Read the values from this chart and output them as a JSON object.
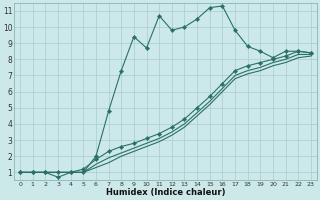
{
  "xlabel": "Humidex (Indice chaleur)",
  "bg_color": "#cce8e8",
  "grid_color": "#a8cccc",
  "line_color": "#2a7068",
  "xlim": [
    -0.5,
    23.5
  ],
  "ylim": [
    0.5,
    11.5
  ],
  "xticks": [
    0,
    1,
    2,
    3,
    4,
    5,
    6,
    7,
    8,
    9,
    10,
    11,
    12,
    13,
    14,
    15,
    16,
    17,
    18,
    19,
    20,
    21,
    22,
    23
  ],
  "yticks": [
    1,
    2,
    3,
    4,
    5,
    6,
    7,
    8,
    9,
    10,
    11
  ],
  "line1_x": [
    0,
    1,
    2,
    3,
    4,
    5,
    6,
    7,
    8,
    9,
    10,
    11,
    12,
    13,
    14,
    15,
    16,
    17,
    18,
    19,
    20,
    21,
    22,
    23
  ],
  "line1_y": [
    1,
    1,
    1,
    0.7,
    1,
    1,
    2,
    4.8,
    7.3,
    9.4,
    8.7,
    10.7,
    9.8,
    10.0,
    10.5,
    11.2,
    11.3,
    9.8,
    8.8,
    8.5,
    8.1,
    8.5,
    8.5,
    8.4
  ],
  "line2_x": [
    0,
    1,
    2,
    3,
    4,
    5,
    6,
    7,
    8,
    9,
    10,
    11,
    12,
    13,
    14,
    15,
    16,
    17,
    18,
    19,
    20,
    21,
    22,
    23
  ],
  "line2_y": [
    1,
    1,
    1,
    1,
    1,
    1.2,
    1.8,
    2.3,
    2.6,
    2.8,
    3.1,
    3.4,
    3.8,
    4.3,
    5.0,
    5.7,
    6.5,
    7.3,
    7.6,
    7.8,
    8.0,
    8.2,
    8.5,
    8.4
  ],
  "line3_x": [
    0,
    1,
    2,
    3,
    4,
    5,
    6,
    7,
    8,
    9,
    10,
    11,
    12,
    13,
    14,
    15,
    16,
    17,
    18,
    19,
    20,
    21,
    22,
    23
  ],
  "line3_y": [
    1,
    1,
    1,
    1,
    1,
    1.0,
    1.5,
    1.9,
    2.2,
    2.5,
    2.8,
    3.1,
    3.5,
    4.0,
    4.7,
    5.4,
    6.2,
    7.0,
    7.3,
    7.5,
    7.8,
    8.0,
    8.3,
    8.3
  ],
  "line4_x": [
    0,
    1,
    2,
    3,
    4,
    5,
    6,
    7,
    8,
    9,
    10,
    11,
    12,
    13,
    14,
    15,
    16,
    17,
    18,
    19,
    20,
    21,
    22,
    23
  ],
  "line4_y": [
    1,
    1,
    1,
    1,
    1,
    1.0,
    1.3,
    1.6,
    2.0,
    2.3,
    2.6,
    2.9,
    3.3,
    3.8,
    4.5,
    5.2,
    6.0,
    6.8,
    7.1,
    7.3,
    7.6,
    7.8,
    8.1,
    8.2
  ]
}
